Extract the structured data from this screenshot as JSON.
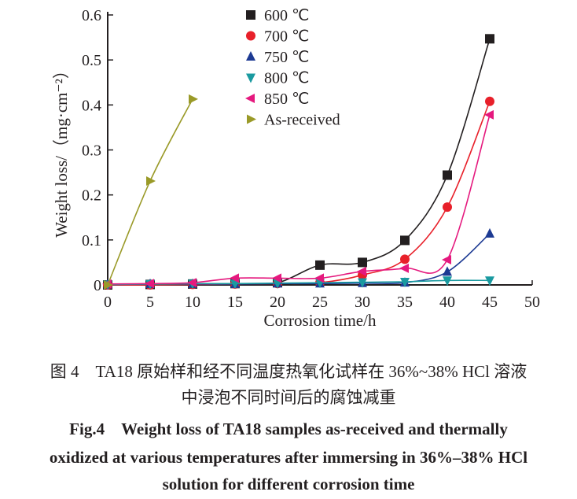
{
  "chart_data": {
    "type": "scatter",
    "xlabel": "Corrosion time/h",
    "ylabel": "Weight loss/（mg·cm⁻²）",
    "xlim": [
      0,
      50
    ],
    "ylim": [
      0,
      0.6
    ],
    "xticks": [
      "0",
      "5",
      "10",
      "15",
      "20",
      "25",
      "30",
      "35",
      "40",
      "45",
      "50"
    ],
    "yticks": [
      "0",
      "0.1",
      "0.2",
      "0.3",
      "0.4",
      "0.5",
      "0.6"
    ],
    "grid": false,
    "legend_position": "top-center",
    "series": [
      {
        "name": "600 ℃",
        "marker": "square",
        "color": "#231f20",
        "x": [
          0,
          5,
          10,
          15,
          20,
          25,
          30,
          35,
          40,
          45
        ],
        "y": [
          0,
          0.001,
          0.002,
          0.003,
          0.005,
          0.044,
          0.05,
          0.099,
          0.244,
          0.547
        ]
      },
      {
        "name": "700 ℃",
        "marker": "circle",
        "color": "#e8202a",
        "x": [
          0,
          5,
          10,
          15,
          20,
          25,
          30,
          35,
          40,
          45
        ],
        "y": [
          0,
          0,
          0.001,
          0.002,
          0.003,
          0.005,
          0.022,
          0.057,
          0.173,
          0.408
        ]
      },
      {
        "name": "750 ℃",
        "marker": "triangle-up",
        "color": "#1d3a93",
        "x": [
          0,
          5,
          10,
          15,
          20,
          25,
          30,
          35,
          40,
          45
        ],
        "y": [
          0.001,
          0.002,
          0.002,
          0.002,
          0.003,
          0.003,
          0.004,
          0.005,
          0.029,
          0.114
        ]
      },
      {
        "name": "800 ℃",
        "marker": "triangle-down",
        "color": "#1a9aa0",
        "x": [
          0,
          5,
          10,
          15,
          20,
          25,
          30,
          35,
          40,
          45
        ],
        "y": [
          0.001,
          0.002,
          0.003,
          0.003,
          0.004,
          0.005,
          0.006,
          0.007,
          0.01,
          0.01
        ]
      },
      {
        "name": "850 ℃",
        "marker": "triangle-left",
        "color": "#e5197e",
        "x": [
          0,
          5,
          10,
          15,
          20,
          25,
          30,
          35,
          40,
          45
        ],
        "y": [
          0.002,
          0.003,
          0.005,
          0.015,
          0.015,
          0.015,
          0.03,
          0.037,
          0.056,
          0.378
        ]
      },
      {
        "name": "As-received",
        "marker": "triangle-right",
        "color": "#9a9a28",
        "x": [
          0,
          5,
          10
        ],
        "y": [
          0,
          0.231,
          0.413
        ]
      }
    ]
  },
  "caption": {
    "cn_line1": "图 4　TA18 原始样和经不同温度热氧化试样在 36%~38% HCl 溶液",
    "cn_line2": "中浸泡不同时间后的腐蚀减重",
    "en_line1": "Fig.4　Weight loss of TA18 samples as-received and thermally",
    "en_line2": "oxidized at various temperatures after immersing in 36%–38% HCl",
    "en_line3": "solution for different corrosion time"
  }
}
